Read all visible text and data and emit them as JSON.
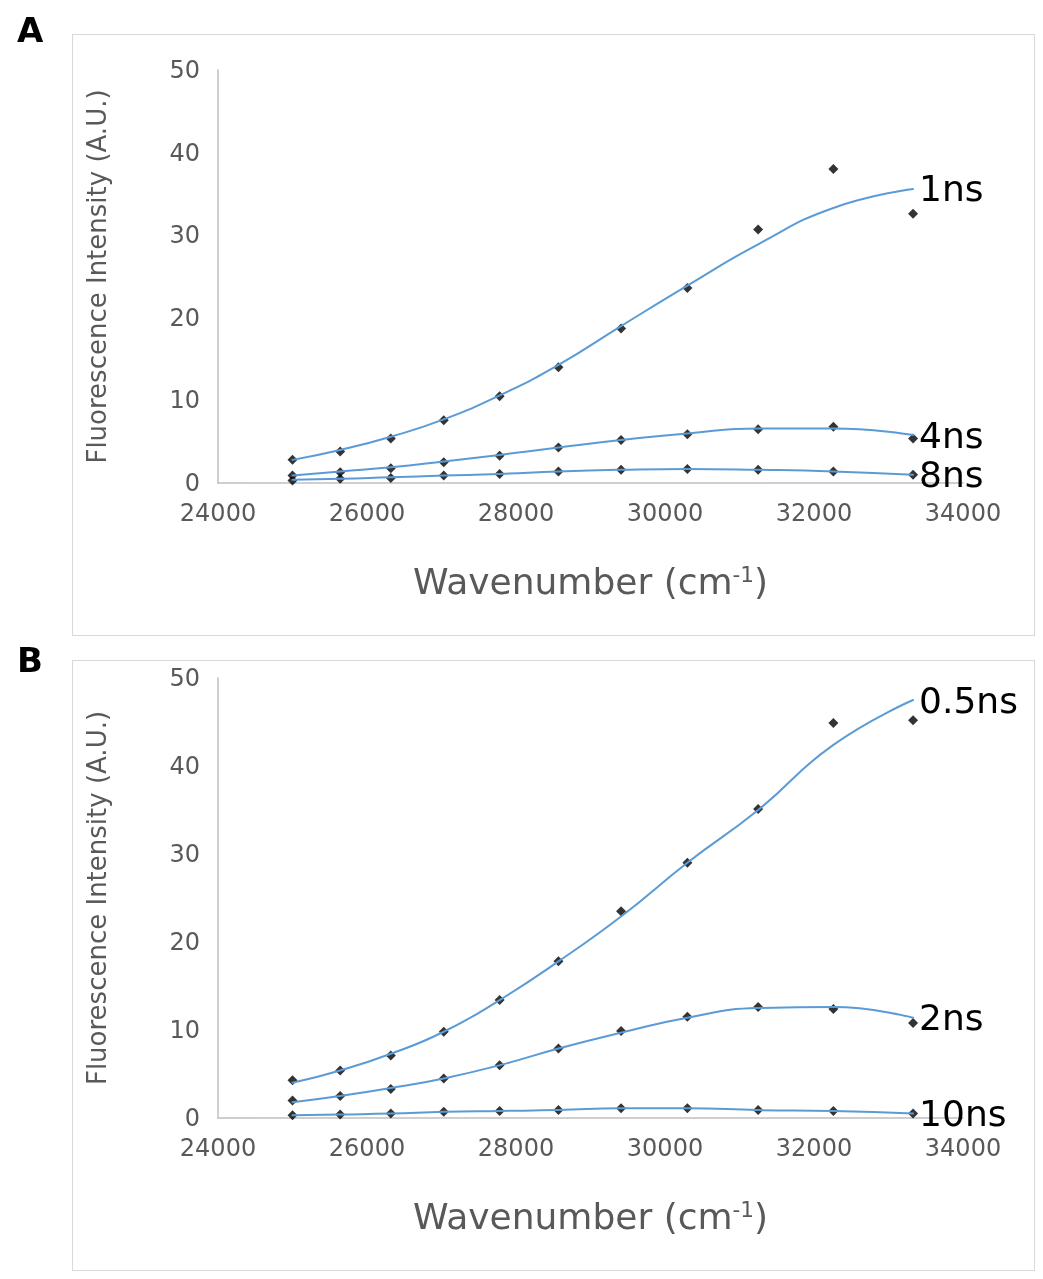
{
  "chart_data": [
    {
      "type": "scatter",
      "title": "A",
      "xlabel": "Wavenumber (cm$^{-1}$)",
      "ylabel": "Fluorescence Intensity (A.U.)",
      "x": [
        25000,
        25640,
        26320,
        27030,
        27780,
        28570,
        29410,
        30300,
        31250,
        32260,
        33330
      ],
      "xlim": [
        24000,
        34000
      ],
      "xticks": [
        24000,
        26000,
        28000,
        30000,
        32000,
        34000
      ],
      "ylim": [
        0,
        50
      ],
      "yticks": [
        0,
        10,
        20,
        30,
        40,
        50
      ],
      "marker": "diamond",
      "series": [
        {
          "type": "line",
          "name": "1ns",
          "color": "#5b9bd5",
          "marker": "none",
          "values": [
            2.8,
            4.0,
            5.6,
            7.7,
            10.6,
            14.3,
            19.0,
            23.9,
            28.9,
            33.3,
            35.6
          ]
        },
        {
          "type": "line",
          "name": "4ns",
          "color": "#5b9bd5",
          "marker": "none",
          "values": [
            0.9,
            1.4,
            1.9,
            2.6,
            3.4,
            4.3,
            5.2,
            6.0,
            6.6,
            6.6,
            5.8
          ]
        },
        {
          "type": "line",
          "name": "8ns",
          "color": "#5b9bd5",
          "marker": "none",
          "values": [
            0.4,
            0.5,
            0.7,
            0.9,
            1.1,
            1.4,
            1.6,
            1.7,
            1.6,
            1.4,
            1.0
          ]
        },
        {
          "color": "#000000",
          "values": [
            2.8,
            3.8,
            5.4,
            7.6,
            10.5,
            14.0,
            18.7,
            23.6,
            30.7,
            38.0,
            32.6
          ]
        },
        {
          "color": "#000000",
          "values": [
            0.9,
            1.3,
            1.8,
            2.5,
            3.3,
            4.3,
            5.2,
            5.9,
            6.5,
            6.8,
            5.4
          ]
        },
        {
          "color": "#000000",
          "values": [
            0.3,
            0.5,
            0.6,
            0.9,
            1.1,
            1.4,
            1.6,
            1.7,
            1.6,
            1.4,
            1.0
          ]
        }
      ]
    },
    {
      "type": "scatter",
      "title": "B",
      "xlabel": "Wavenumber (cm$^{-1}$)",
      "ylabel": "Fluorescence Intensity (A.U.)",
      "x": [
        25000,
        25640,
        26320,
        27030,
        27780,
        28570,
        29410,
        30300,
        31250,
        32260,
        33330
      ],
      "xlim": [
        24000,
        34000
      ],
      "xticks": [
        24000,
        26000,
        28000,
        30000,
        32000,
        34000
      ],
      "ylim": [
        0,
        50
      ],
      "yticks": [
        0,
        10,
        20,
        30,
        40,
        50
      ],
      "marker": "diamond",
      "series": [
        {
          "type": "line",
          "name": "0.5ns",
          "color": "#5b9bd5",
          "marker": "none",
          "values": [
            4.0,
            5.4,
            7.3,
            9.8,
            13.4,
            17.8,
            22.9,
            29.0,
            35.0,
            42.4,
            47.5
          ]
        },
        {
          "type": "line",
          "name": "2ns",
          "color": "#5b9bd5",
          "marker": "none",
          "values": [
            1.8,
            2.5,
            3.4,
            4.5,
            6.0,
            7.9,
            9.7,
            11.4,
            12.5,
            12.6,
            11.4
          ]
        },
        {
          "type": "line",
          "name": "10ns",
          "color": "#5b9bd5",
          "marker": "none",
          "values": [
            0.3,
            0.4,
            0.5,
            0.7,
            0.8,
            0.9,
            1.1,
            1.1,
            0.9,
            0.8,
            0.5
          ]
        },
        {
          "color": "#000000",
          "values": [
            4.3,
            5.4,
            7.1,
            9.8,
            13.4,
            17.8,
            23.5,
            29.0,
            35.1,
            44.9,
            45.2
          ]
        },
        {
          "color": "#000000",
          "values": [
            2.0,
            2.5,
            3.3,
            4.5,
            6.0,
            7.9,
            9.9,
            11.5,
            12.6,
            12.4,
            10.8
          ]
        },
        {
          "color": "#000000",
          "values": [
            0.3,
            0.4,
            0.5,
            0.7,
            0.8,
            0.9,
            1.1,
            1.1,
            0.9,
            0.8,
            0.5
          ]
        }
      ]
    }
  ]
}
